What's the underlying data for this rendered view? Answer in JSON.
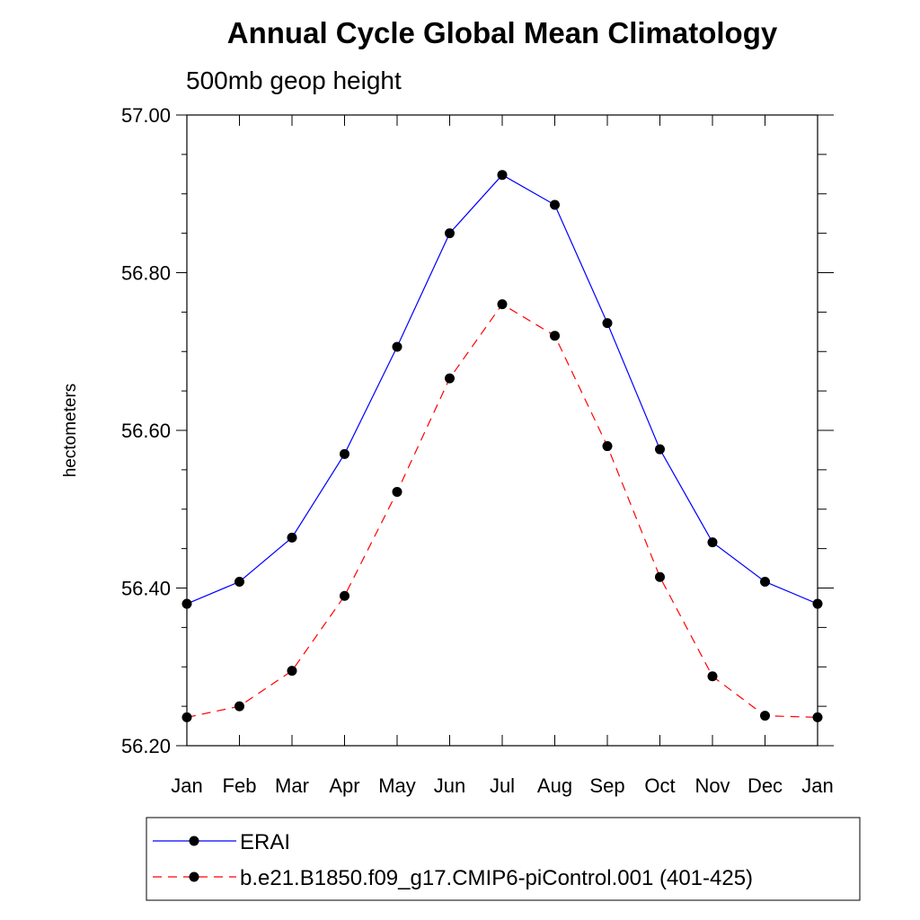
{
  "chart_data": {
    "type": "line",
    "title": "Annual Cycle Global Mean Climatology",
    "subtitle": "500mb geop height",
    "xlabel": "",
    "ylabel": "hectometers",
    "categories": [
      "Jan",
      "Feb",
      "Mar",
      "Apr",
      "May",
      "Jun",
      "Jul",
      "Aug",
      "Sep",
      "Oct",
      "Nov",
      "Dec",
      "Jan"
    ],
    "ylim": [
      56.2,
      57.0
    ],
    "yticks": [
      "56.20",
      "56.40",
      "56.60",
      "56.80",
      "57.00"
    ],
    "grid": false,
    "legend_position": "bottom",
    "series": [
      {
        "name": "ERAI",
        "color": "#0000ff",
        "line_style": "solid",
        "marker": "filled-circle",
        "values": [
          56.38,
          56.408,
          56.464,
          56.57,
          56.706,
          56.85,
          56.924,
          56.886,
          56.736,
          56.576,
          56.458,
          56.408,
          56.38
        ]
      },
      {
        "name": "b.e21.B1850.f09_g17.CMIP6-piControl.001 (401-425)",
        "color": "#ff0000",
        "line_style": "dashed",
        "marker": "filled-circle",
        "values": [
          56.236,
          56.25,
          56.295,
          56.39,
          56.522,
          56.666,
          56.76,
          56.72,
          56.58,
          56.414,
          56.288,
          56.238,
          56.236
        ]
      }
    ]
  }
}
